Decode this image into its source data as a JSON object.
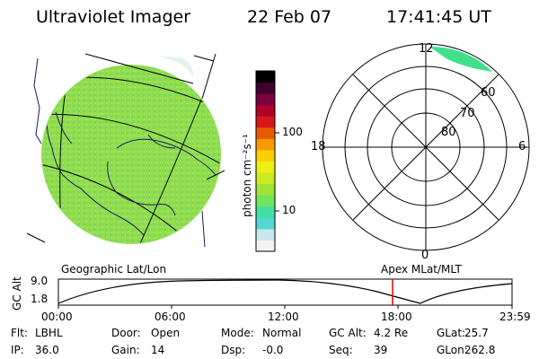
{
  "header": {
    "title": "Ultraviolet Imager",
    "date": "22 Feb 07",
    "time": "17:41:45 UT"
  },
  "colorbar": {
    "unit_label": "photon cm⁻²s⁻¹",
    "ticks": [
      "100",
      "10"
    ],
    "colors": [
      "#f2f2f2",
      "#c8e8ee",
      "#52d6d6",
      "#40e0a0",
      "#6ee55a",
      "#9ee53a",
      "#c8ea20",
      "#eeee10",
      "#f8d000",
      "#f59a00",
      "#e85a00",
      "#d81818",
      "#b00028",
      "#7a0040",
      "#400030",
      "#000000"
    ]
  },
  "globe_map": {
    "caption": "Geographic Lat/Lon",
    "fill_color": "#8edc52"
  },
  "polar_plot": {
    "caption": "Apex MLat/MLT",
    "mlt_labels": {
      "top": "12",
      "bottom": "0",
      "left": "18",
      "right": "6"
    },
    "lat_labels": [
      "60",
      "70",
      "80"
    ]
  },
  "altitude_plot": {
    "ylabel": "GC Alt",
    "yticks": [
      "9.0",
      "1.8"
    ],
    "xticks": [
      "00:00",
      "06:00",
      "12:00",
      "18:00",
      "23:59"
    ],
    "current_time_color": "#e00000"
  },
  "status": [
    [
      {
        "label": "Flt:",
        "value": "LBHL"
      },
      {
        "label": "Door:",
        "value": "Open"
      },
      {
        "label": "Mode:",
        "value": "Normal"
      },
      {
        "label": "GC Alt:",
        "value": "4.2 Re"
      },
      {
        "label": "GLat:",
        "value": "25.7"
      }
    ],
    [
      {
        "label": "IP:",
        "value": "36.0"
      },
      {
        "label": "Gain:",
        "value": "14"
      },
      {
        "label": "Dsp:",
        "value": "-0.0"
      },
      {
        "label": "Seq:",
        "value": "39"
      },
      {
        "label": "GLon:",
        "value": "262.8"
      }
    ]
  ]
}
